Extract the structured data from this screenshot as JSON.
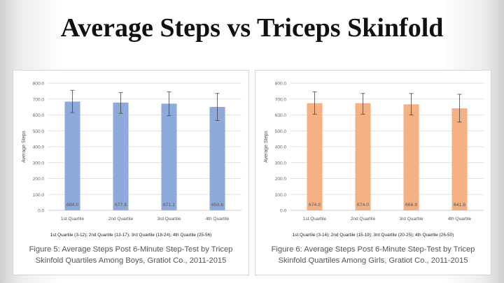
{
  "slide_title": "Average Steps vs Triceps Skinfold",
  "chart_data": [
    {
      "type": "bar",
      "categories": [
        "1st Quartile",
        "2nd Quartile",
        "3rd Quartile",
        "4th Quartile"
      ],
      "values": [
        684.0,
        677.8,
        671.1,
        650.6
      ],
      "value_labels": [
        "684.0",
        "677.8",
        "671.1",
        "650.6"
      ],
      "error_bars": [
        [
          615,
          755
        ],
        [
          610,
          740
        ],
        [
          595,
          745
        ],
        [
          565,
          735
        ]
      ],
      "ylabel": "Average Steps",
      "ylim": [
        0,
        800
      ],
      "yticks": [
        "0.0",
        "100.0",
        "200.0",
        "300.0",
        "400.0",
        "500.0",
        "600.0",
        "700.0",
        "800.0"
      ],
      "grid": true,
      "bar_color": "#8eaadb",
      "legend_text": "1st Quartile (3-12); 2nd Quartile (13-17); 3rd Quartile (18-24); 4th Quartile (25-56)",
      "caption_line1": "Figure 5: Average Steps Post 6-Minute Step-Test by Tricep",
      "caption_line2": "Skinfold Quartiles Among Boys, Gratiot Co., 2011-2015"
    },
    {
      "type": "bar",
      "categories": [
        "1st Quartile",
        "2nd Quartile",
        "3rd Quartile",
        "4th Quartile"
      ],
      "values": [
        674.0,
        674.0,
        666.9,
        641.8
      ],
      "value_labels": [
        "674.0",
        "674.0",
        "666.9",
        "641.8"
      ],
      "error_bars": [
        [
          605,
          745
        ],
        [
          605,
          735
        ],
        [
          600,
          735
        ],
        [
          555,
          730
        ]
      ],
      "ylabel": "Average Steps",
      "ylim": [
        0,
        800
      ],
      "yticks": [
        "0.0",
        "100.0",
        "200.0",
        "300.0",
        "400.0",
        "500.0",
        "600.0",
        "700.0",
        "800.0"
      ],
      "grid": true,
      "bar_color": "#f4b183",
      "legend_text": "1st Quartile (3-14); 2nd Quartile (15-19); 3rd Quartile (20-25); 4th Quartile (26-50)",
      "caption_line1": "Figure 6: Average Steps Post 6-Minute Step-Test by Tricep",
      "caption_line2": "Skinfold Quartiles Among Girls, Gratiot Co., 2011-2015"
    }
  ]
}
